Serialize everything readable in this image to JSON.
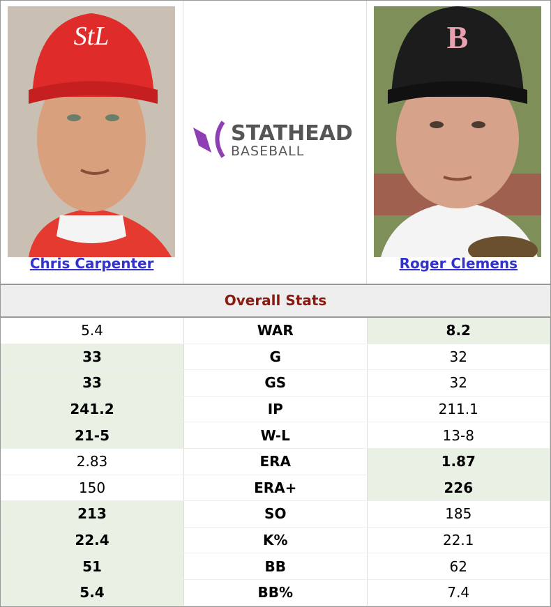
{
  "players": [
    {
      "name": "Chris Carpenter"
    },
    {
      "name": "Roger Clemens"
    }
  ],
  "logo": {
    "title": "STATHEAD",
    "subtitle": "BASEBALL"
  },
  "section": "Overall Stats",
  "rows": [
    {
      "left": "5.4",
      "stat": "WAR",
      "right": "8.2",
      "better": "right"
    },
    {
      "left": "33",
      "stat": "G",
      "right": "32",
      "better": "left"
    },
    {
      "left": "33",
      "stat": "GS",
      "right": "32",
      "better": "left"
    },
    {
      "left": "241.2",
      "stat": "IP",
      "right": "211.1",
      "better": "left"
    },
    {
      "left": "21-5",
      "stat": "W-L",
      "right": "13-8",
      "better": "left"
    },
    {
      "left": "2.83",
      "stat": "ERA",
      "right": "1.87",
      "better": "right"
    },
    {
      "left": "150",
      "stat": "ERA+",
      "right": "226",
      "better": "right"
    },
    {
      "left": "213",
      "stat": "SO",
      "right": "185",
      "better": "left"
    },
    {
      "left": "22.4",
      "stat": "K%",
      "right": "22.1",
      "better": "left"
    },
    {
      "left": "51",
      "stat": "BB",
      "right": "62",
      "better": "left"
    },
    {
      "left": "5.4",
      "stat": "BB%",
      "right": "7.4",
      "better": "left"
    }
  ]
}
